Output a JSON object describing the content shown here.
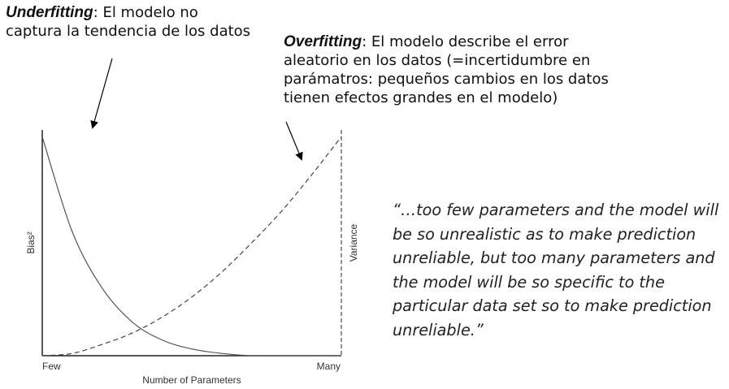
{
  "annotations": {
    "underfitting": {
      "term": "Underfitting",
      "text": ": El modelo no captura la tendencia de los datos"
    },
    "overfitting": {
      "term": "Overfitting",
      "text": ": El modelo describe el error aleatorio en los datos (=incertidumbre en parámatros: pequeños cambios en los datos tienen efectos grandes en el modelo)"
    }
  },
  "quote": "“…too few parameters and the model will be so unrealistic as to make prediction unreliable, but too many parameters and the model will be so specific to the particular data set so to make prediction unreliable.”",
  "colors": {
    "axis": "#222222",
    "bias_curve": "#555555",
    "variance_curve": "#444444",
    "arrow": "#000000"
  },
  "chart_data": {
    "type": "line",
    "xlabel": "Number of Parameters",
    "ylabel_left": "Bias²",
    "ylabel_right": "Variance",
    "x_tick_labels": [
      "Few",
      "Many"
    ],
    "xlim": [
      0,
      1
    ],
    "ylim": [
      0,
      1
    ],
    "grid": false,
    "series": [
      {
        "name": "Bias²",
        "style": "solid",
        "x": [
          0,
          0.1,
          0.2,
          0.3,
          0.4,
          0.5,
          0.6,
          0.7,
          0.8,
          0.9,
          1.0
        ],
        "y": [
          0.97,
          0.55,
          0.3,
          0.15,
          0.07,
          0.03,
          0.01,
          0.0,
          0.0,
          0.0,
          0.0
        ]
      },
      {
        "name": "Variance",
        "style": "dashed",
        "x": [
          0,
          0.1,
          0.2,
          0.3,
          0.4,
          0.5,
          0.6,
          0.7,
          0.8,
          0.9,
          1.0
        ],
        "y": [
          0.0,
          0.01,
          0.05,
          0.1,
          0.17,
          0.26,
          0.37,
          0.5,
          0.64,
          0.8,
          0.97
        ]
      }
    ]
  }
}
